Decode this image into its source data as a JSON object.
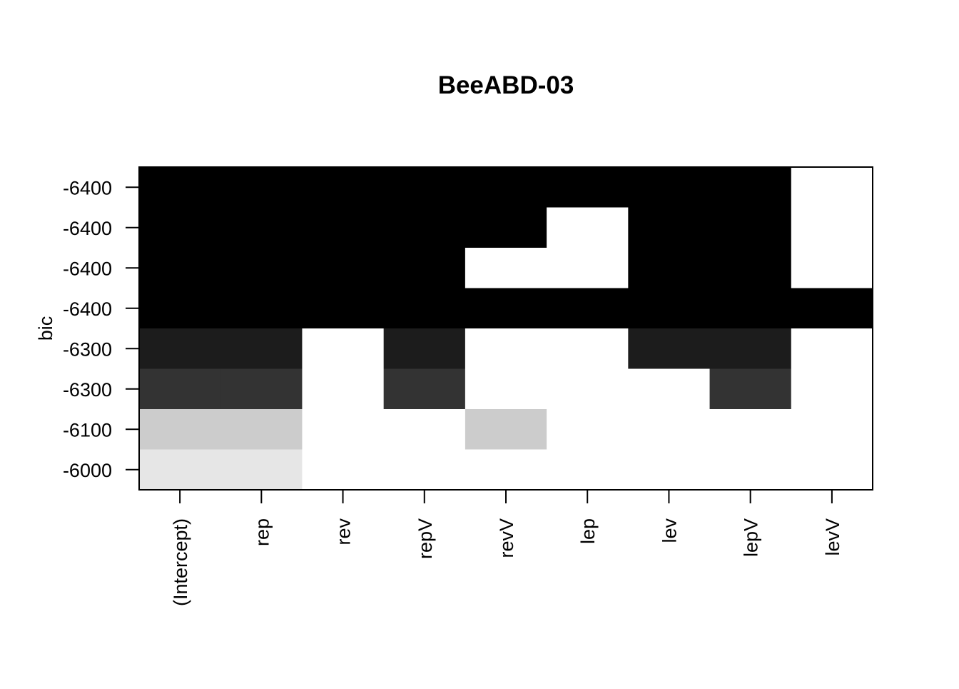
{
  "chart_data": {
    "type": "heatmap",
    "title": "BeeABD-03",
    "xlabel": "",
    "ylabel": "bic",
    "x_labels": [
      "(Intercept)",
      "rep",
      "rev",
      "repV",
      "revV",
      "lep",
      "lev",
      "lepV",
      "levV"
    ],
    "y_labels": [
      "-6400",
      "-6400",
      "-6400",
      "-6400",
      "-6300",
      "-6300",
      "-6100",
      "-6000"
    ],
    "row_shades": [
      "#000000",
      "#000000",
      "#000000",
      "#000000",
      "#1c1c1c",
      "#333333",
      "#cccccc",
      "#e6e6e6"
    ],
    "included": [
      [
        1,
        1,
        1,
        1,
        1,
        1,
        1,
        1,
        0
      ],
      [
        1,
        1,
        1,
        1,
        1,
        0,
        1,
        1,
        0
      ],
      [
        1,
        1,
        1,
        1,
        0,
        0,
        1,
        1,
        0
      ],
      [
        1,
        1,
        1,
        1,
        1,
        1,
        1,
        1,
        1
      ],
      [
        1,
        1,
        0,
        1,
        0,
        0,
        1,
        1,
        0
      ],
      [
        1,
        1,
        0,
        1,
        0,
        0,
        0,
        1,
        0
      ],
      [
        1,
        1,
        0,
        0,
        1,
        0,
        0,
        0,
        0
      ],
      [
        1,
        1,
        0,
        0,
        0,
        0,
        0,
        0,
        0
      ]
    ],
    "excluded_color": "#ffffff",
    "grid": false,
    "legend": "none"
  }
}
